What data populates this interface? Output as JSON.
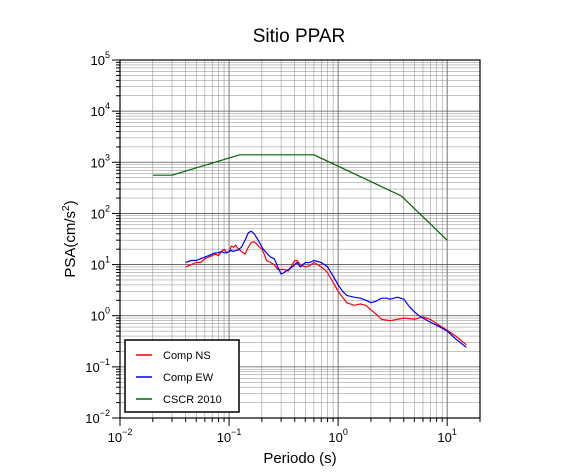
{
  "chart_data": {
    "type": "line",
    "title": "Sitio PPAR",
    "xlabel": "Periodo (s)",
    "ylabel_base": "PSA(cm/s",
    "ylabel_sup": "2",
    "ylabel_close": ")",
    "x_scale": "log",
    "y_scale": "log",
    "xlim": [
      0.01,
      20
    ],
    "ylim": [
      0.01,
      100000
    ],
    "grid": true,
    "legend_position": "bottom-left",
    "x_ticks": [
      {
        "base": "10",
        "exp": "−2",
        "value": 0.01
      },
      {
        "base": "10",
        "exp": "−1",
        "value": 0.1
      },
      {
        "base": "10",
        "exp": "0",
        "value": 1
      },
      {
        "base": "10",
        "exp": "1",
        "value": 10
      }
    ],
    "y_ticks": [
      {
        "base": "10",
        "exp": "−2",
        "value": 0.01
      },
      {
        "base": "10",
        "exp": "−1",
        "value": 0.1
      },
      {
        "base": "10",
        "exp": "0",
        "value": 1
      },
      {
        "base": "10",
        "exp": "1",
        "value": 10
      },
      {
        "base": "10",
        "exp": "2",
        "value": 100
      },
      {
        "base": "10",
        "exp": "3",
        "value": 1000
      },
      {
        "base": "10",
        "exp": "4",
        "value": 10000
      },
      {
        "base": "10",
        "exp": "5",
        "value": 100000
      }
    ],
    "series": [
      {
        "name": "Comp NS",
        "color": "#ff0000",
        "x": [
          0.04,
          0.045,
          0.05,
          0.055,
          0.06,
          0.065,
          0.07,
          0.075,
          0.08,
          0.085,
          0.09,
          0.095,
          0.1,
          0.105,
          0.11,
          0.115,
          0.12,
          0.13,
          0.14,
          0.15,
          0.16,
          0.17,
          0.18,
          0.19,
          0.2,
          0.21,
          0.22,
          0.24,
          0.26,
          0.28,
          0.3,
          0.32,
          0.35,
          0.38,
          0.4,
          0.42,
          0.45,
          0.5,
          0.55,
          0.6,
          0.65,
          0.7,
          0.75,
          0.8,
          0.9,
          1.0,
          1.1,
          1.2,
          1.4,
          1.6,
          1.8,
          2.0,
          2.2,
          2.5,
          2.8,
          3.0,
          3.5,
          4.0,
          4.5,
          5.0,
          5.5,
          6.0,
          7.0,
          8.0,
          9.0,
          10.0,
          12.0,
          15.0
        ],
        "y": [
          9,
          10,
          11,
          11,
          13,
          14,
          15,
          16,
          15,
          18,
          20,
          17,
          18,
          23,
          22,
          24,
          21,
          18,
          16,
          22,
          27,
          28,
          25,
          22,
          20,
          16,
          12,
          11,
          10,
          8,
          8,
          8,
          7.5,
          10,
          12,
          12,
          10,
          9,
          9.5,
          11,
          10,
          9,
          8,
          7,
          4.5,
          3,
          2.3,
          1.8,
          1.6,
          1.7,
          1.6,
          1.3,
          1.1,
          0.85,
          0.82,
          0.8,
          0.85,
          0.9,
          0.88,
          0.85,
          0.9,
          0.95,
          0.85,
          0.7,
          0.6,
          0.52,
          0.4,
          0.27
        ]
      },
      {
        "name": "Comp EW",
        "color": "#0000ff",
        "x": [
          0.04,
          0.045,
          0.05,
          0.055,
          0.06,
          0.065,
          0.07,
          0.075,
          0.08,
          0.085,
          0.09,
          0.095,
          0.1,
          0.105,
          0.11,
          0.115,
          0.12,
          0.13,
          0.14,
          0.15,
          0.16,
          0.17,
          0.18,
          0.19,
          0.2,
          0.21,
          0.22,
          0.24,
          0.26,
          0.28,
          0.3,
          0.32,
          0.35,
          0.38,
          0.4,
          0.42,
          0.45,
          0.5,
          0.55,
          0.6,
          0.65,
          0.7,
          0.75,
          0.8,
          0.9,
          1.0,
          1.1,
          1.2,
          1.4,
          1.6,
          1.8,
          2.0,
          2.2,
          2.5,
          2.8,
          3.0,
          3.5,
          4.0,
          4.5,
          5.0,
          5.5,
          6.0,
          7.0,
          8.0,
          9.0,
          10.0,
          12.0,
          15.0
        ],
        "y": [
          11,
          12,
          12,
          13,
          14,
          15,
          16,
          17,
          17,
          18,
          17,
          17,
          18,
          19,
          18,
          19,
          19,
          22,
          30,
          42,
          45,
          40,
          33,
          27,
          22,
          19,
          17,
          14,
          13,
          9,
          6.5,
          7,
          8,
          9,
          10,
          11,
          9,
          11,
          11,
          12,
          11.5,
          11,
          10,
          9,
          6,
          4,
          3,
          2.5,
          2.3,
          2.2,
          2,
          1.8,
          1.9,
          2.2,
          2.2,
          2.1,
          2.3,
          2.1,
          1.5,
          1.2,
          1.0,
          0.9,
          0.75,
          0.65,
          0.57,
          0.5,
          0.35,
          0.24
        ]
      },
      {
        "name": "CSCR 2010",
        "color": "#006400",
        "x": [
          0.02,
          0.03,
          0.125,
          0.6,
          3.8,
          10.0
        ],
        "y": [
          560,
          560,
          1400,
          1400,
          220,
          30
        ]
      }
    ]
  }
}
